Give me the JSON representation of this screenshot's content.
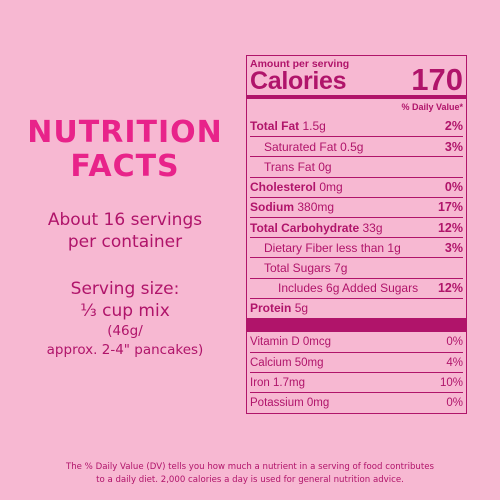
{
  "colors": {
    "background": "#f7b8d2",
    "heading": "#e8238a",
    "text": "#b0146a",
    "rule": "#b0146a"
  },
  "left": {
    "heading_line1": "NUTRITION",
    "heading_line2": "FACTS",
    "servings_line1": "About 16 servings",
    "servings_line2": "per container",
    "serving_size_line1": "Serving size:",
    "serving_size_line2": "⅓ cup mix",
    "serving_size_line3": "(46g/",
    "serving_size_line4": "approx. 2-4\" pancakes)"
  },
  "label": {
    "amount_per_serving": "Amount per serving",
    "calories_label": "Calories",
    "calories_value": "170",
    "daily_value_header": "% Daily Value*",
    "nutrients": [
      {
        "name": "Total Fat",
        "amount": "1.5g",
        "pct": "2%",
        "bold_name": true,
        "indent": 0
      },
      {
        "name": "Saturated Fat",
        "amount": "0.5g",
        "pct": "3%",
        "bold_name": false,
        "indent": 1
      },
      {
        "name": "Trans Fat",
        "amount": "0g",
        "pct": "",
        "bold_name": false,
        "indent": 1
      },
      {
        "name": "Cholesterol",
        "amount": "0mg",
        "pct": "0%",
        "bold_name": true,
        "indent": 0
      },
      {
        "name": "Sodium",
        "amount": "380mg",
        "pct": "17%",
        "bold_name": true,
        "indent": 0
      },
      {
        "name": "Total Carbohydrate",
        "amount": "33g",
        "pct": "12%",
        "bold_name": true,
        "indent": 0
      },
      {
        "name": "Dietary Fiber",
        "amount": "less than 1g",
        "pct": "3%",
        "bold_name": false,
        "indent": 1
      },
      {
        "name": "Total Sugars",
        "amount": "7g",
        "pct": "",
        "bold_name": false,
        "indent": 1
      },
      {
        "name": "Includes 6g Added Sugars",
        "amount": "",
        "pct": "12%",
        "bold_name": false,
        "indent": 2
      },
      {
        "name": "Protein",
        "amount": "5g",
        "pct": "",
        "bold_name": true,
        "indent": 0
      }
    ],
    "vitamins": [
      {
        "name": "Vitamin D",
        "amount": "0mcg",
        "pct": "0%"
      },
      {
        "name": "Calcium",
        "amount": "50mg",
        "pct": "4%"
      },
      {
        "name": "Iron",
        "amount": "1.7mg",
        "pct": "10%"
      },
      {
        "name": "Potassium",
        "amount": "0mg",
        "pct": "0%"
      }
    ]
  },
  "footer": {
    "line1": "The % Daily Value (DV) tells you how much a nutrient in a serving of food contributes",
    "line2": "to a daily diet. 2,000 calories a day is used for general nutrition advice."
  }
}
